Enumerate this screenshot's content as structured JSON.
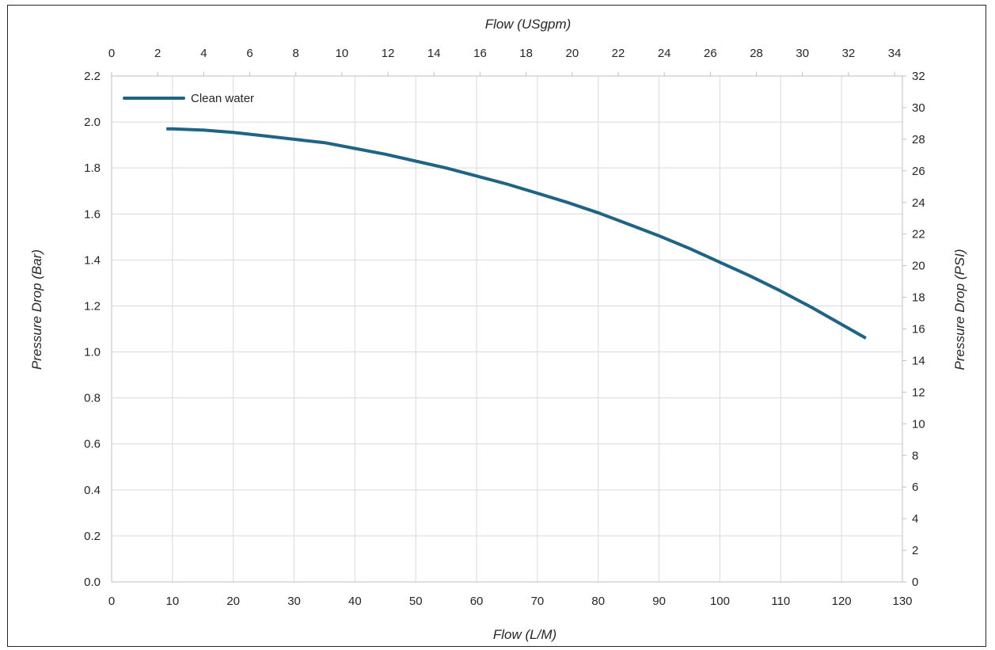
{
  "chart_data": {
    "type": "line",
    "x_axis_bottom": {
      "label": "Flow (L/M)",
      "range": [
        0,
        130
      ],
      "ticks": [
        "0",
        "10",
        "20",
        "30",
        "40",
        "50",
        "60",
        "70",
        "80",
        "90",
        "100",
        "110",
        "120",
        "130"
      ]
    },
    "x_axis_top": {
      "label": "Flow (USgpm)",
      "range": [
        0,
        34.34
      ],
      "ticks": [
        "0",
        "2",
        "4",
        "6",
        "8",
        "10",
        "12",
        "14",
        "16",
        "18",
        "20",
        "22",
        "24",
        "26",
        "28",
        "30",
        "32",
        "34"
      ]
    },
    "y_axis_left": {
      "label": "Pressure Drop (Bar)",
      "range": [
        0,
        2.2
      ],
      "ticks": [
        "0.0",
        "0.2",
        "0.4",
        "0.6",
        "0.8",
        "1.0",
        "1.2",
        "1.4",
        "1.6",
        "1.8",
        "2.0",
        "2.2"
      ]
    },
    "y_axis_right": {
      "label": "Pressure Drop (PSI)",
      "range": [
        0,
        32
      ],
      "ticks": [
        "0",
        "2",
        "4",
        "6",
        "8",
        "10",
        "12",
        "14",
        "16",
        "18",
        "20",
        "22",
        "24",
        "26",
        "28",
        "30",
        "32"
      ]
    },
    "grid": true,
    "legend": {
      "position": "top-left"
    },
    "series": [
      {
        "name": "Clean water",
        "color": "#1f6385",
        "x": [
          9,
          10,
          15,
          20,
          25,
          30,
          35,
          40,
          45,
          50,
          55,
          60,
          65,
          70,
          75,
          80,
          85,
          90,
          95,
          100,
          105,
          110,
          115,
          120,
          124
        ],
        "y": [
          1.97,
          1.97,
          1.965,
          1.955,
          1.94,
          1.925,
          1.91,
          1.885,
          1.86,
          1.83,
          1.8,
          1.765,
          1.73,
          1.69,
          1.65,
          1.605,
          1.555,
          1.505,
          1.45,
          1.39,
          1.33,
          1.265,
          1.195,
          1.12,
          1.06
        ]
      }
    ]
  }
}
